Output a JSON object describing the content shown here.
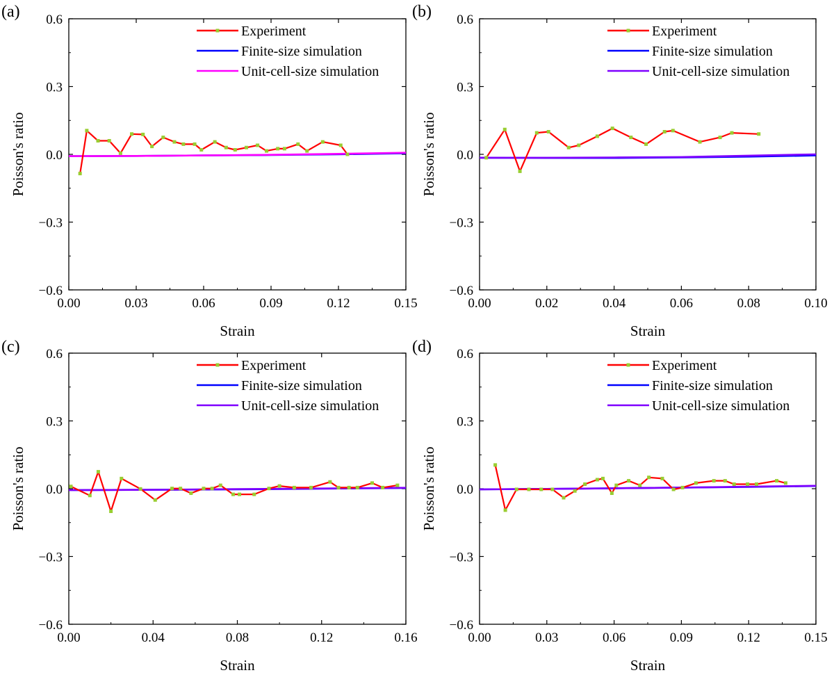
{
  "figure": {
    "colors": {
      "experiment": "#ff0000",
      "experiment_marker": "#9acd32",
      "finite": "#0000ff",
      "unit_cell_a": "#ff00ff",
      "unit_cell": "#7f00ff"
    }
  },
  "chart_data": [
    {
      "panel": "(a)",
      "type": "line",
      "xlabel": "Strain",
      "ylabel": "Poisson's ratio",
      "xlim": [
        0.0,
        0.15
      ],
      "ylim": [
        -0.6,
        0.6
      ],
      "xticks": [
        "0.00",
        "0.03",
        "0.06",
        "0.09",
        "0.12",
        "0.15"
      ],
      "yticks": [
        "-0.6",
        "-0.3",
        "0.0",
        "0.3",
        "0.6"
      ],
      "legend": [
        "Experiment",
        "Finite-size simulation",
        "Unit-cell-size simulation"
      ],
      "series": [
        {
          "name": "Experiment",
          "markers": true,
          "x": [
            0.005,
            0.008,
            0.013,
            0.018,
            0.023,
            0.028,
            0.033,
            0.037,
            0.042,
            0.047,
            0.051,
            0.056,
            0.059,
            0.065,
            0.07,
            0.074,
            0.079,
            0.084,
            0.088,
            0.093,
            0.096,
            0.102,
            0.106,
            0.113,
            0.121,
            0.124
          ],
          "y": [
            -0.085,
            0.105,
            0.06,
            0.06,
            0.005,
            0.09,
            0.088,
            0.035,
            0.075,
            0.055,
            0.045,
            0.045,
            0.02,
            0.055,
            0.03,
            0.02,
            0.03,
            0.04,
            0.015,
            0.025,
            0.025,
            0.045,
            0.015,
            0.055,
            0.04,
            0.0
          ]
        },
        {
          "name": "Finite-size simulation",
          "x": [
            0.0,
            0.03,
            0.06,
            0.09,
            0.12,
            0.15
          ],
          "y": [
            -0.008,
            -0.007,
            -0.005,
            -0.003,
            0.0,
            0.005
          ]
        },
        {
          "name": "Unit-cell-size simulation",
          "x": [
            0.0,
            0.03,
            0.06,
            0.09,
            0.12,
            0.15
          ],
          "y": [
            -0.008,
            -0.007,
            -0.005,
            -0.002,
            0.002,
            0.007
          ]
        }
      ]
    },
    {
      "panel": "(b)",
      "type": "line",
      "xlabel": "Strain",
      "ylabel": "Poisson's ratio",
      "xlim": [
        0.0,
        0.1
      ],
      "ylim": [
        -0.6,
        0.6
      ],
      "xticks": [
        "0.00",
        "0.02",
        "0.04",
        "0.06",
        "0.08",
        "0.10"
      ],
      "yticks": [
        "-0.6",
        "-0.3",
        "0.0",
        "0.3",
        "0.6"
      ],
      "legend": [
        "Experiment",
        "Finite-size simulation",
        "Unit-cell-size simulation"
      ],
      "series": [
        {
          "name": "Experiment",
          "markers": true,
          "x": [
            0.002,
            0.0075,
            0.012,
            0.017,
            0.0205,
            0.0265,
            0.0295,
            0.035,
            0.0395,
            0.045,
            0.0495,
            0.055,
            0.0575,
            0.0655,
            0.0715,
            0.075,
            0.083
          ],
          "y": [
            -0.015,
            0.11,
            -0.075,
            0.095,
            0.1,
            0.03,
            0.04,
            0.08,
            0.115,
            0.075,
            0.045,
            0.1,
            0.105,
            0.055,
            0.075,
            0.095,
            0.09
          ]
        },
        {
          "name": "Finite-size simulation",
          "x": [
            0.0,
            0.02,
            0.04,
            0.06,
            0.08,
            0.1
          ],
          "y": [
            -0.015,
            -0.016,
            -0.016,
            -0.014,
            -0.01,
            -0.005
          ]
        },
        {
          "name": "Unit-cell-size simulation",
          "x": [
            0.0,
            0.02,
            0.04,
            0.06,
            0.08,
            0.1
          ],
          "y": [
            -0.015,
            -0.015,
            -0.014,
            -0.012,
            -0.006,
            0.0
          ]
        }
      ]
    },
    {
      "panel": "(c)",
      "type": "line",
      "xlabel": "Strain",
      "ylabel": "Poisson's ratio",
      "xlim": [
        0.0,
        0.16
      ],
      "ylim": [
        -0.6,
        0.6
      ],
      "xticks": [
        "0.00",
        "0.04",
        "0.08",
        "0.12",
        "0.16"
      ],
      "yticks": [
        "-0.6",
        "-0.3",
        "0.0",
        "0.3",
        "0.6"
      ],
      "legend": [
        "Experiment",
        "Finite-size simulation",
        "Unit-cell-size simulation"
      ],
      "series": [
        {
          "name": "Experiment",
          "markers": true,
          "x": [
            0.001,
            0.01,
            0.014,
            0.02,
            0.025,
            0.034,
            0.041,
            0.049,
            0.053,
            0.058,
            0.064,
            0.068,
            0.072,
            0.078,
            0.081,
            0.088,
            0.095,
            0.1,
            0.107,
            0.115,
            0.124,
            0.128,
            0.133,
            0.137,
            0.144,
            0.149,
            0.156
          ],
          "y": [
            0.01,
            -0.03,
            0.075,
            -0.1,
            0.045,
            -0.001,
            -0.05,
            0.001,
            0.001,
            -0.02,
            0.001,
            0.001,
            0.015,
            -0.025,
            -0.025,
            -0.025,
            0.001,
            0.012,
            0.005,
            0.005,
            0.03,
            0.005,
            0.005,
            0.005,
            0.025,
            0.005,
            0.015
          ]
        },
        {
          "name": "Finite-size simulation",
          "x": [
            0.0,
            0.04,
            0.08,
            0.12,
            0.16
          ],
          "y": [
            -0.006,
            -0.005,
            -0.003,
            0.0,
            0.003
          ]
        },
        {
          "name": "Unit-cell-size simulation",
          "x": [
            0.0,
            0.04,
            0.08,
            0.12,
            0.16
          ],
          "y": [
            -0.006,
            -0.005,
            -0.002,
            0.001,
            0.004
          ]
        }
      ]
    },
    {
      "panel": "(d)",
      "type": "line",
      "xlabel": "Strain",
      "ylabel": "Poisson's ratio",
      "xlim": [
        0.0,
        0.15
      ],
      "ylim": [
        -0.6,
        0.6
      ],
      "xticks": [
        "0.00",
        "0.03",
        "0.06",
        "0.09",
        "0.12",
        "0.15"
      ],
      "yticks": [
        "-0.6",
        "-0.3",
        "0.0",
        "0.3",
        "0.6"
      ],
      "legend": [
        "Experiment",
        "Finite-size simulation",
        "Unit-cell-size simulation"
      ],
      "series": [
        {
          "name": "Experiment",
          "markers": true,
          "x": [
            0.007,
            0.0115,
            0.0165,
            0.022,
            0.0275,
            0.0325,
            0.0375,
            0.0425,
            0.047,
            0.0525,
            0.055,
            0.059,
            0.061,
            0.0665,
            0.0715,
            0.0755,
            0.0815,
            0.0865,
            0.0905,
            0.0965,
            0.1045,
            0.1095,
            0.1135,
            0.1195,
            0.1235,
            0.1325,
            0.1365
          ],
          "y": [
            0.105,
            -0.095,
            -0.003,
            -0.003,
            -0.003,
            -0.003,
            -0.04,
            -0.01,
            0.02,
            0.04,
            0.045,
            -0.02,
            0.015,
            0.035,
            0.015,
            0.05,
            0.045,
            -0.003,
            0.005,
            0.025,
            0.035,
            0.035,
            0.02,
            0.02,
            0.02,
            0.035,
            0.025
          ]
        },
        {
          "name": "Finite-size simulation",
          "x": [
            0.0,
            0.03,
            0.06,
            0.09,
            0.12,
            0.15
          ],
          "y": [
            -0.003,
            -0.001,
            0.002,
            0.005,
            0.008,
            0.012
          ]
        },
        {
          "name": "Unit-cell-size simulation",
          "x": [
            0.0,
            0.03,
            0.06,
            0.09,
            0.12,
            0.15
          ],
          "y": [
            -0.003,
            -0.001,
            0.002,
            0.005,
            0.009,
            0.013
          ]
        }
      ]
    }
  ]
}
